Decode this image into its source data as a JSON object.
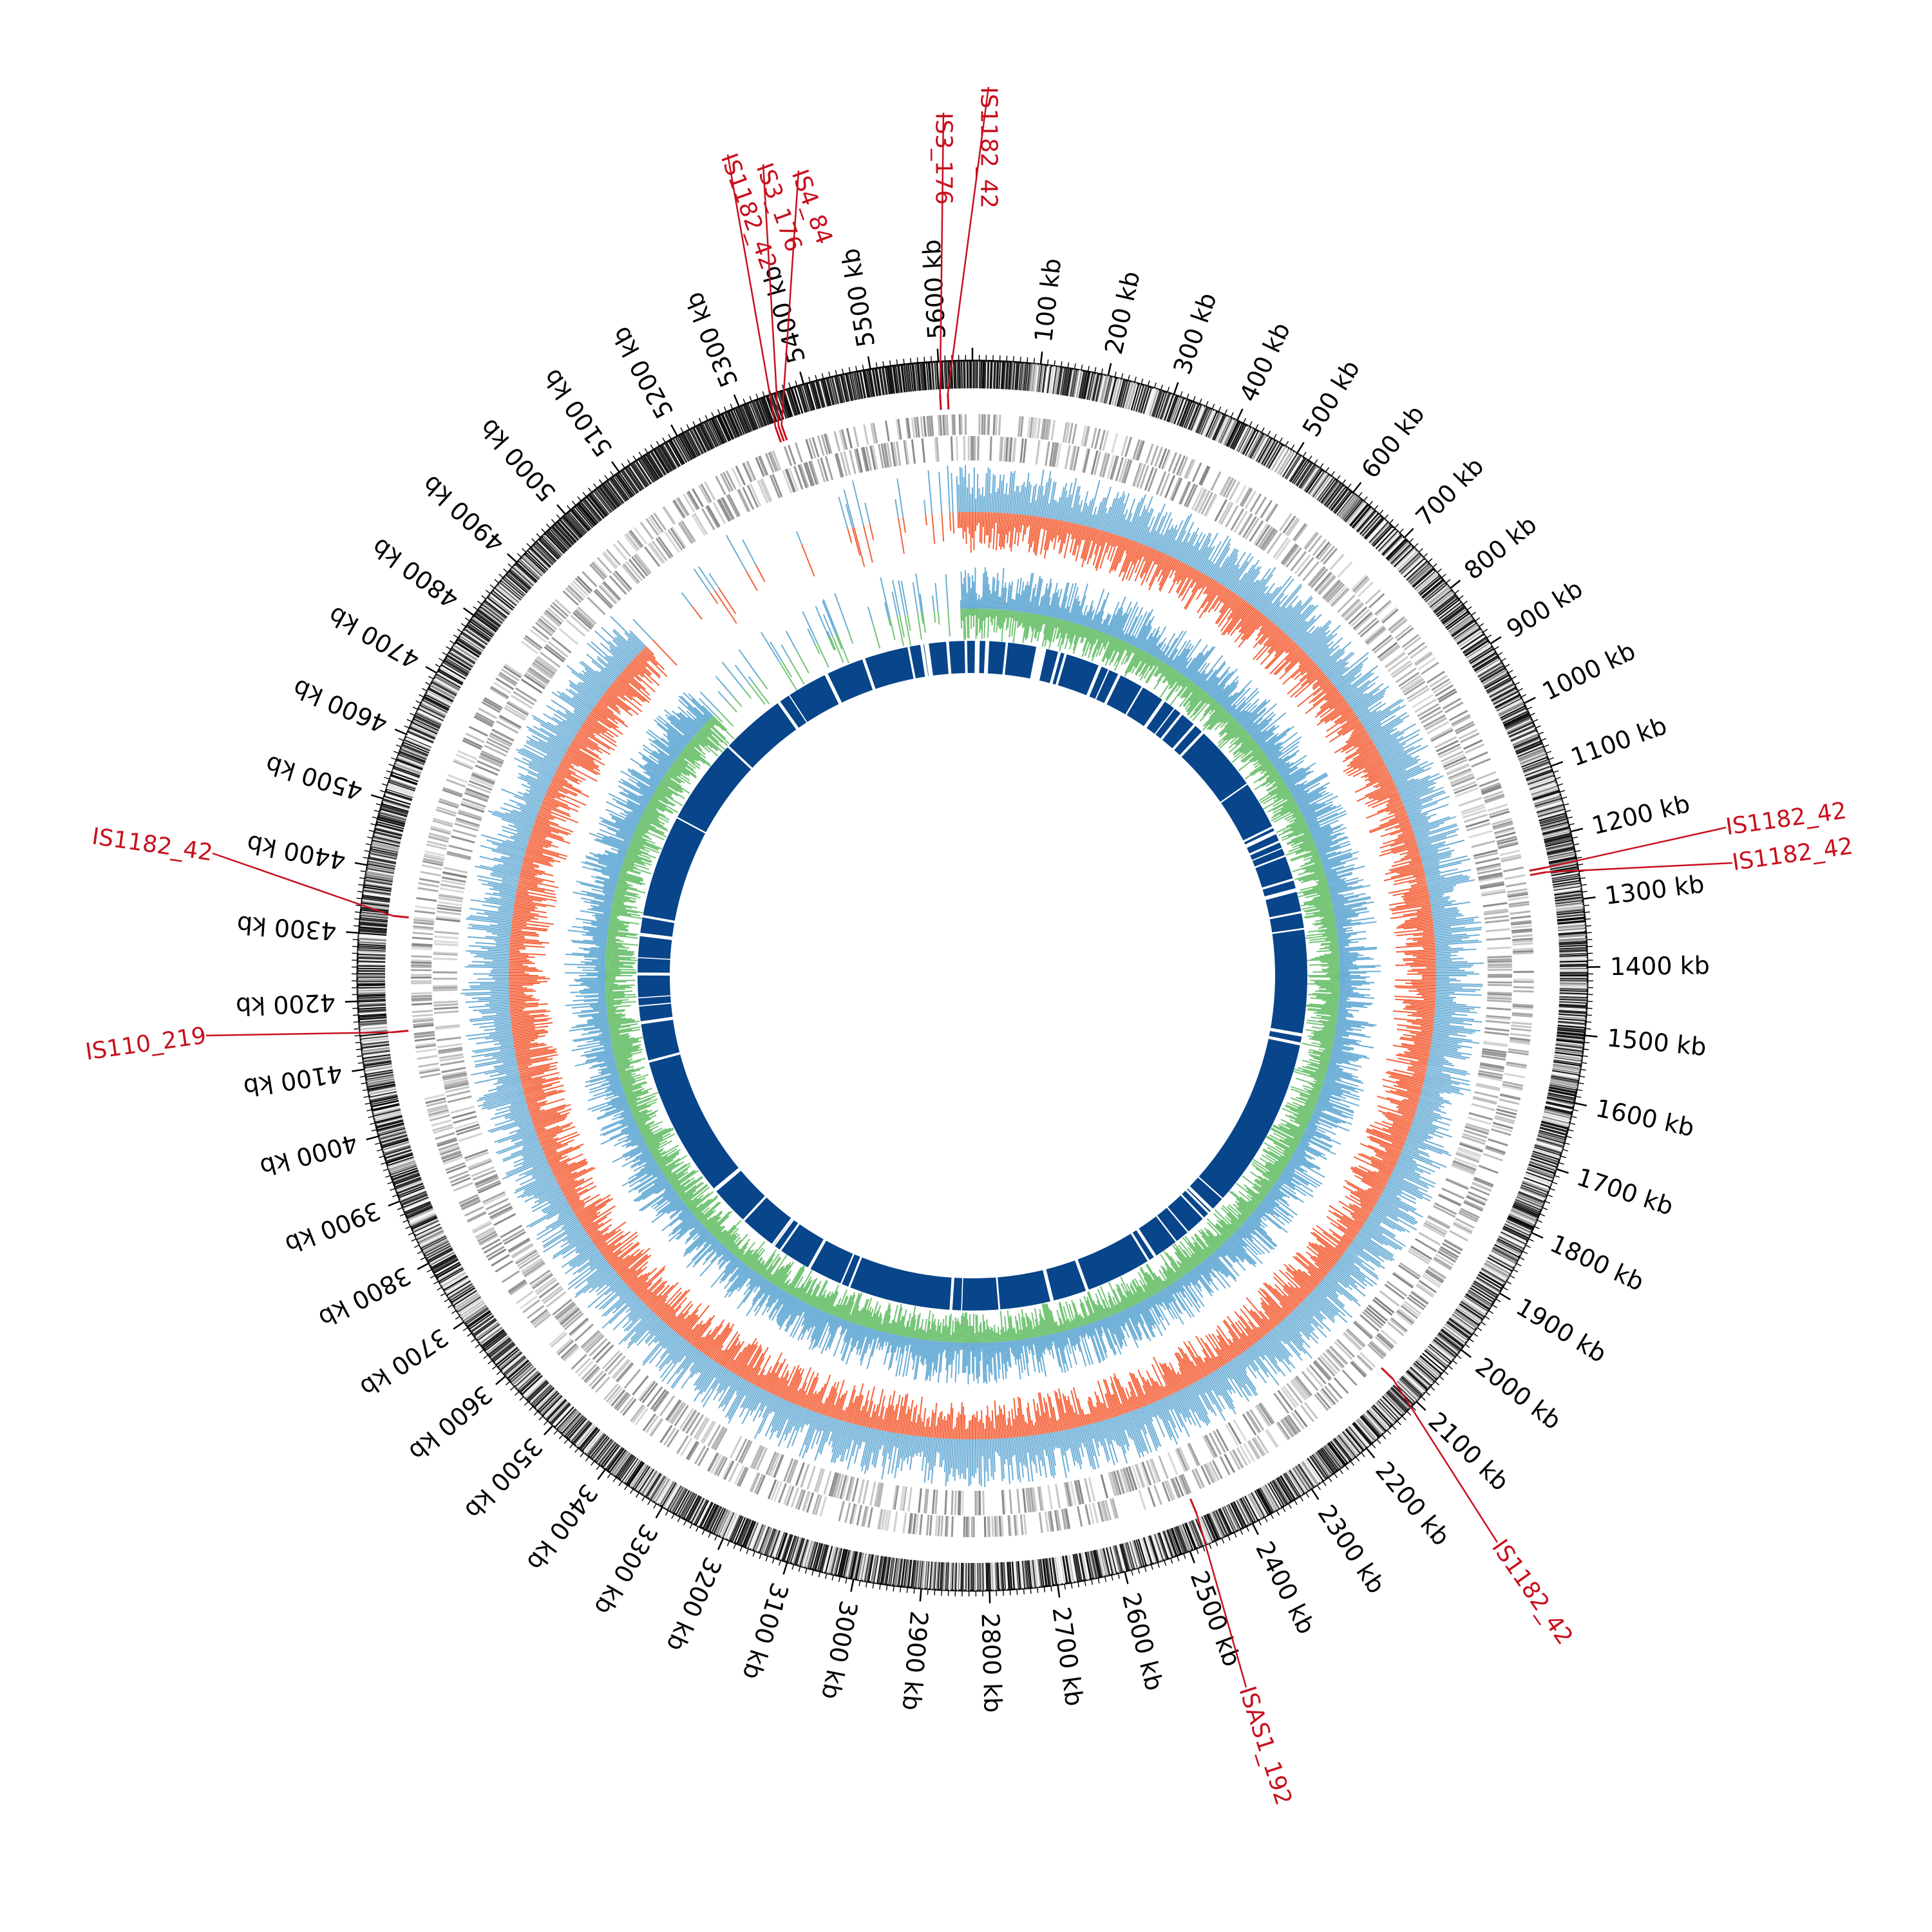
{
  "genome": {
    "length_kb": 5650,
    "tick_labels": [
      "100 kb",
      "200 kb",
      "300 kb",
      "400 kb",
      "500 kb",
      "600 kb",
      "700 kb",
      "800 kb",
      "900 kb",
      "1000 kb",
      "1100 kb",
      "1200 kb",
      "1300 kb",
      "1400 kb",
      "1500 kb",
      "1600 kb",
      "1700 kb",
      "1800 kb",
      "1900 kb",
      "2000 kb",
      "2100 kb",
      "2200 kb",
      "2300 kb",
      "2400 kb",
      "2500 kb",
      "2600 kb",
      "2700 kb",
      "2800 kb",
      "2900 kb",
      "3000 kb",
      "3100 kb",
      "3200 kb",
      "3300 kb",
      "3400 kb",
      "3500 kb",
      "3600 kb",
      "3700 kb",
      "3800 kb",
      "3900 kb",
      "4000 kb",
      "4100 kb",
      "4200 kb",
      "4300 kb",
      "4400 kb",
      "4500 kb",
      "4600 kb",
      "4700 kb",
      "4800 kb",
      "4900 kb",
      "5000 kb",
      "5100 kb",
      "5200 kb",
      "5300 kb",
      "5400 kb",
      "5500 kb",
      "5600 kb"
    ],
    "tick_values_kb": [
      100,
      200,
      300,
      400,
      500,
      600,
      700,
      800,
      900,
      1000,
      1100,
      1200,
      1300,
      1400,
      1500,
      1600,
      1700,
      1800,
      1900,
      2000,
      2100,
      2200,
      2300,
      2400,
      2500,
      2600,
      2700,
      2800,
      2900,
      3000,
      3100,
      3200,
      3300,
      3400,
      3500,
      3600,
      3700,
      3800,
      3900,
      4000,
      4100,
      4200,
      4300,
      4400,
      4500,
      4600,
      4700,
      4800,
      4900,
      5000,
      5100,
      5200,
      5300,
      5400,
      5500,
      5600
    ]
  },
  "insertion_sequences": [
    {
      "name": "IS1182_42",
      "position_kb": 5612
    },
    {
      "name": "IS3_176",
      "position_kb": 5600
    },
    {
      "name": "IS4_84",
      "position_kb": 5350
    },
    {
      "name": "IS3_176",
      "position_kb": 5345
    },
    {
      "name": "IS1182_42",
      "position_kb": 5340
    },
    {
      "name": "IS1182_42",
      "position_kb": 1245
    },
    {
      "name": "IS1182_42",
      "position_kb": 1252
    },
    {
      "name": "IS1182_42",
      "position_kb": 2100
    },
    {
      "name": "ISAS1_192",
      "position_kb": 2470
    },
    {
      "name": "IS1182_42",
      "position_kb": 4330
    },
    {
      "name": "IS110_219",
      "position_kb": 4150
    }
  ],
  "colors": {
    "ruler": "#000000",
    "is_marker": "#c8101e",
    "orf_track": "#9e9e9e",
    "gc_skew_positive": "#6baed6",
    "gc_skew_negative": "#f4623a",
    "gc_content": "#74c476",
    "coverage_ring": "#08458a",
    "background": "#ffffff"
  }
}
